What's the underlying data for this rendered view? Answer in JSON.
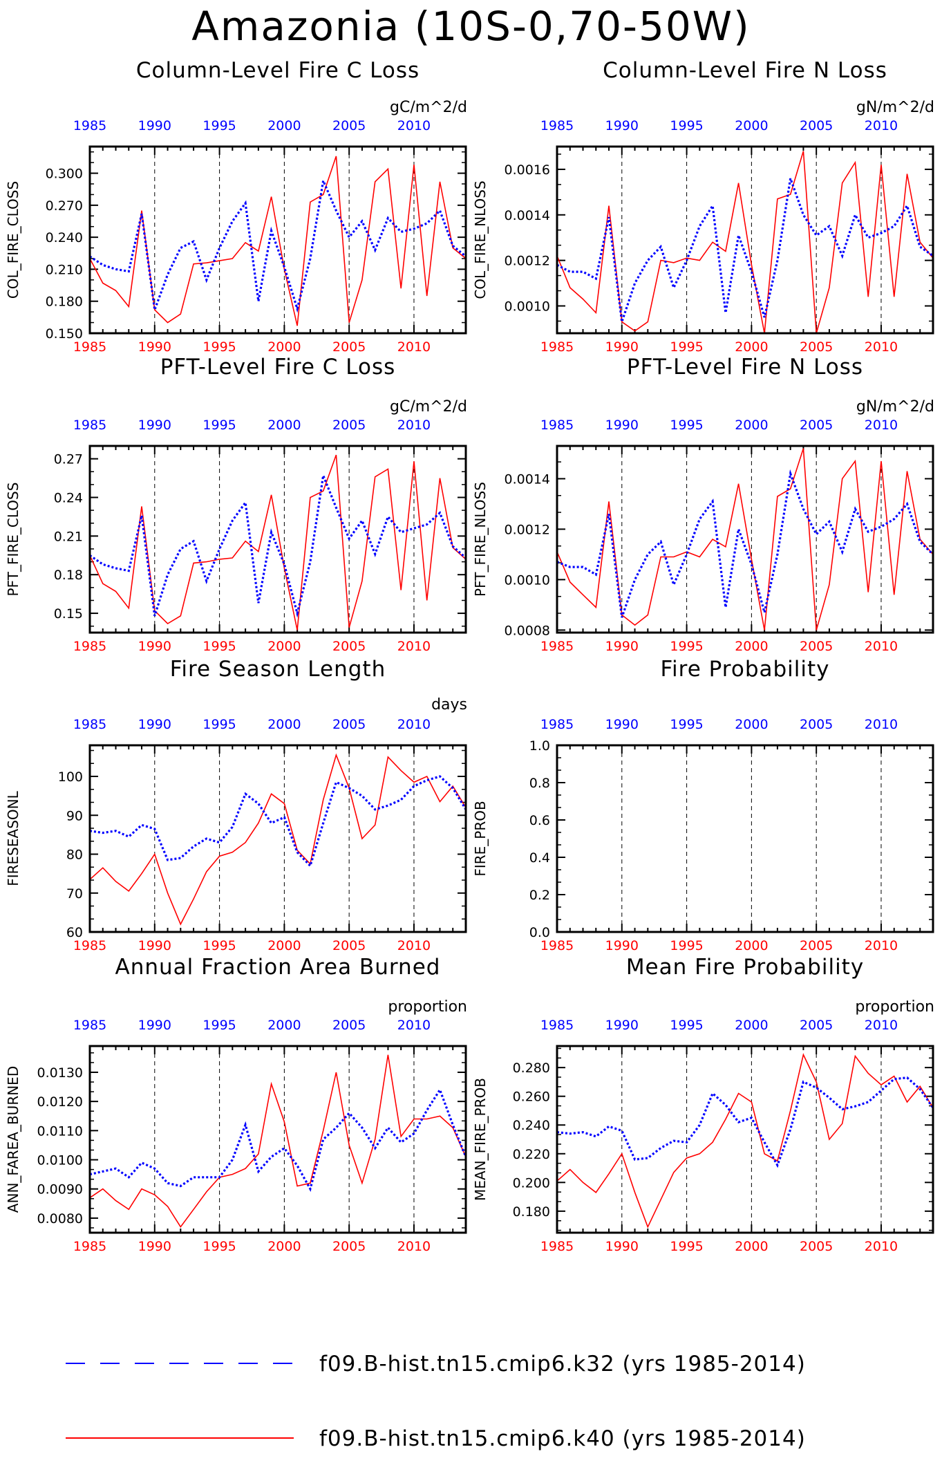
{
  "title": "Amazonia (10S-0,70-50W)",
  "x_ticks": [
    "1985",
    "1990",
    "1995",
    "2000",
    "2005",
    "2010"
  ],
  "legend": [
    {
      "label": "f09.B-hist.tn15.cmip6.k32 (yrs 1985-2014)",
      "color": "#0000ff",
      "style": "dashed"
    },
    {
      "label": "f09.B-hist.tn15.cmip6.k40 (yrs 1985-2014)",
      "color": "#ff0000",
      "style": "solid"
    }
  ],
  "chart_data": [
    {
      "type": "line",
      "title": "Column-Level Fire C Loss",
      "units": "gC/m^2/d",
      "ylabel": "COL_FIRE_CLOSS",
      "xlim": [
        1985,
        2014
      ],
      "ylim": [
        0.15,
        0.325
      ],
      "yticks": [
        "0.150",
        "0.180",
        "0.210",
        "0.240",
        "0.270",
        "0.300"
      ],
      "x": [
        1985,
        1986,
        1987,
        1988,
        1989,
        1990,
        1991,
        1992,
        1993,
        1994,
        1995,
        1996,
        1997,
        1998,
        1999,
        2000,
        2001,
        2002,
        2003,
        2004,
        2005,
        2006,
        2007,
        2008,
        2009,
        2010,
        2011,
        2012,
        2013,
        2014
      ],
      "series": [
        {
          "name": "f09.B-hist.tn15.cmip6.k32",
          "values": [
            0.222,
            0.214,
            0.21,
            0.208,
            0.262,
            0.172,
            0.205,
            0.23,
            0.236,
            0.2,
            0.23,
            0.255,
            0.272,
            0.18,
            0.246,
            0.212,
            0.173,
            0.22,
            0.293,
            0.265,
            0.24,
            0.255,
            0.228,
            0.258,
            0.245,
            0.248,
            0.253,
            0.265,
            0.232,
            0.222
          ]
        },
        {
          "name": "f09.B-hist.tn15.cmip6.k40",
          "values": [
            0.22,
            0.197,
            0.19,
            0.175,
            0.265,
            0.172,
            0.16,
            0.168,
            0.215,
            0.216,
            0.218,
            0.22,
            0.235,
            0.227,
            0.278,
            0.21,
            0.157,
            0.273,
            0.28,
            0.316,
            0.16,
            0.2,
            0.292,
            0.304,
            0.192,
            0.308,
            0.185,
            0.292,
            0.23,
            0.22
          ]
        }
      ]
    },
    {
      "type": "line",
      "title": "Column-Level Fire N Loss",
      "units": "gN/m^2/d",
      "ylabel": "COL_FIRE_NLOSS",
      "xlim": [
        1985,
        2014
      ],
      "ylim": [
        0.00088,
        0.0017
      ],
      "yticks": [
        "0.0010",
        "0.0012",
        "0.0014",
        "0.0016"
      ],
      "x": [
        1985,
        1986,
        1987,
        1988,
        1989,
        1990,
        1991,
        1992,
        1993,
        1994,
        1995,
        1996,
        1997,
        1998,
        1999,
        2000,
        2001,
        2002,
        2003,
        2004,
        2005,
        2006,
        2007,
        2008,
        2009,
        2010,
        2011,
        2012,
        2013,
        2014
      ],
      "series": [
        {
          "name": "f09.B-hist.tn15.cmip6.k32",
          "values": [
            0.00118,
            0.00115,
            0.00115,
            0.00112,
            0.00139,
            0.00093,
            0.0011,
            0.0012,
            0.00126,
            0.00108,
            0.0012,
            0.00135,
            0.00144,
            0.00097,
            0.00131,
            0.00115,
            0.00095,
            0.0012,
            0.00156,
            0.0014,
            0.00131,
            0.00135,
            0.00122,
            0.0014,
            0.0013,
            0.00132,
            0.00135,
            0.00144,
            0.00126,
            0.00122
          ]
        },
        {
          "name": "f09.B-hist.tn15.cmip6.k40",
          "values": [
            0.00122,
            0.00108,
            0.00103,
            0.00097,
            0.00144,
            0.00093,
            0.00089,
            0.00093,
            0.0012,
            0.00119,
            0.00121,
            0.0012,
            0.00128,
            0.00124,
            0.00154,
            0.00118,
            0.00088,
            0.00147,
            0.00149,
            0.00168,
            0.00088,
            0.00108,
            0.00154,
            0.00163,
            0.00104,
            0.00162,
            0.00104,
            0.00158,
            0.00128,
            0.00121
          ]
        }
      ]
    },
    {
      "type": "line",
      "title": "PFT-Level Fire C Loss",
      "units": "gC/m^2/d",
      "ylabel": "PFT_FIRE_CLOSS",
      "xlim": [
        1985,
        2014
      ],
      "ylim": [
        0.135,
        0.28
      ],
      "yticks": [
        "0.15",
        "0.18",
        "0.21",
        "0.24",
        "0.27"
      ],
      "x": [
        1985,
        1986,
        1987,
        1988,
        1989,
        1990,
        1991,
        1992,
        1993,
        1994,
        1995,
        1996,
        1997,
        1998,
        1999,
        2000,
        2001,
        2002,
        2003,
        2004,
        2005,
        2006,
        2007,
        2008,
        2009,
        2010,
        2011,
        2012,
        2013,
        2014
      ],
      "series": [
        {
          "name": "f09.B-hist.tn15.cmip6.k32",
          "values": [
            0.195,
            0.188,
            0.185,
            0.183,
            0.226,
            0.148,
            0.18,
            0.2,
            0.206,
            0.175,
            0.2,
            0.222,
            0.236,
            0.158,
            0.213,
            0.188,
            0.15,
            0.19,
            0.257,
            0.232,
            0.208,
            0.222,
            0.196,
            0.225,
            0.213,
            0.216,
            0.219,
            0.228,
            0.202,
            0.193
          ]
        },
        {
          "name": "f09.B-hist.tn15.cmip6.k40",
          "values": [
            0.195,
            0.173,
            0.167,
            0.154,
            0.233,
            0.152,
            0.142,
            0.148,
            0.189,
            0.19,
            0.192,
            0.193,
            0.206,
            0.198,
            0.242,
            0.185,
            0.137,
            0.24,
            0.245,
            0.273,
            0.139,
            0.175,
            0.256,
            0.262,
            0.168,
            0.268,
            0.16,
            0.255,
            0.201,
            0.192
          ]
        }
      ]
    },
    {
      "type": "line",
      "title": "PFT-Level Fire N Loss",
      "units": "gN/m^2/d",
      "ylabel": "PFT_FIRE_NLOSS",
      "xlim": [
        1985,
        2014
      ],
      "ylim": [
        0.00079,
        0.00153
      ],
      "yticks": [
        "0.0008",
        "0.0010",
        "0.0012",
        "0.0014"
      ],
      "x": [
        1985,
        1986,
        1987,
        1988,
        1989,
        1990,
        1991,
        1992,
        1993,
        1994,
        1995,
        1996,
        1997,
        1998,
        1999,
        2000,
        2001,
        2002,
        2003,
        2004,
        2005,
        2006,
        2007,
        2008,
        2009,
        2010,
        2011,
        2012,
        2013,
        2014
      ],
      "series": [
        {
          "name": "f09.B-hist.tn15.cmip6.k32",
          "values": [
            0.00107,
            0.00105,
            0.00105,
            0.00102,
            0.00126,
            0.00085,
            0.001,
            0.0011,
            0.00115,
            0.00098,
            0.0011,
            0.00124,
            0.00131,
            0.00089,
            0.0012,
            0.00106,
            0.00087,
            0.0011,
            0.00142,
            0.00128,
            0.00118,
            0.00123,
            0.00111,
            0.00128,
            0.00119,
            0.00121,
            0.00124,
            0.0013,
            0.00115,
            0.0011
          ]
        },
        {
          "name": "f09.B-hist.tn15.cmip6.k40",
          "values": [
            0.00111,
            0.00099,
            0.00094,
            0.00089,
            0.00131,
            0.00086,
            0.00082,
            0.00086,
            0.00109,
            0.00109,
            0.00111,
            0.00109,
            0.00116,
            0.00113,
            0.00138,
            0.00108,
            0.0008,
            0.00133,
            0.00136,
            0.00152,
            0.0008,
            0.00098,
            0.0014,
            0.00147,
            0.00095,
            0.00147,
            0.00094,
            0.00143,
            0.00116,
            0.0011
          ]
        }
      ]
    },
    {
      "type": "line",
      "title": "Fire Season Length",
      "units": "days",
      "ylabel": "FIRESEASONL",
      "xlim": [
        1985,
        2014
      ],
      "ylim": [
        60,
        108
      ],
      "yticks": [
        "60",
        "70",
        "80",
        "90",
        "100"
      ],
      "x": [
        1985,
        1986,
        1987,
        1988,
        1989,
        1990,
        1991,
        1992,
        1993,
        1994,
        1995,
        1996,
        1997,
        1998,
        1999,
        2000,
        2001,
        2002,
        2003,
        2004,
        2005,
        2006,
        2007,
        2008,
        2009,
        2010,
        2011,
        2012,
        2013,
        2014
      ],
      "series": [
        {
          "name": "f09.B-hist.tn15.cmip6.k32",
          "values": [
            86,
            85.5,
            86,
            84.5,
            87.5,
            86.5,
            78.5,
            79,
            82,
            84,
            83,
            87,
            95.5,
            93,
            88,
            89.5,
            80.5,
            77,
            88,
            98.5,
            97,
            95,
            91.5,
            92.5,
            94,
            97.5,
            99,
            100,
            97,
            91.5
          ]
        },
        {
          "name": "f09.B-hist.tn15.cmip6.k40",
          "values": [
            73.5,
            76.5,
            73,
            70.5,
            75,
            80,
            70,
            62,
            68.5,
            75.5,
            79.5,
            80.5,
            83,
            88,
            95.5,
            93,
            81,
            77.5,
            94,
            105.5,
            97,
            84,
            87.5,
            105,
            101.5,
            98.5,
            100,
            93.5,
            97.5,
            92
          ]
        }
      ]
    },
    {
      "type": "line",
      "title": "Fire Probability",
      "units": "",
      "ylabel": "FIRE_PROB",
      "xlim": [
        1985,
        2014
      ],
      "ylim": [
        0,
        1
      ],
      "yticks": [
        "0.0",
        "0.2",
        "0.4",
        "0.6",
        "0.8",
        "1.0"
      ],
      "x": [],
      "series": []
    },
    {
      "type": "line",
      "title": "Annual Fraction Area Burned",
      "units": "proportion",
      "ylabel": "ANN_FAREA_BURNED",
      "xlim": [
        1985,
        2014
      ],
      "ylim": [
        0.0075,
        0.0139
      ],
      "yticks": [
        "0.0080",
        "0.0090",
        "0.0100",
        "0.0110",
        "0.0120",
        "0.0130"
      ],
      "x": [
        1985,
        1986,
        1987,
        1988,
        1989,
        1990,
        1991,
        1992,
        1993,
        1994,
        1995,
        1996,
        1997,
        1998,
        1999,
        2000,
        2001,
        2002,
        2003,
        2004,
        2005,
        2006,
        2007,
        2008,
        2009,
        2010,
        2011,
        2012,
        2013,
        2014
      ],
      "series": [
        {
          "name": "f09.B-hist.tn15.cmip6.k32",
          "values": [
            0.0095,
            0.0096,
            0.0097,
            0.0094,
            0.0099,
            0.0097,
            0.0092,
            0.0091,
            0.0094,
            0.0094,
            0.0094,
            0.01,
            0.0112,
            0.0096,
            0.0101,
            0.0104,
            0.0098,
            0.009,
            0.0107,
            0.0111,
            0.0116,
            0.0111,
            0.0104,
            0.0111,
            0.0106,
            0.0109,
            0.0117,
            0.0124,
            0.0112,
            0.0101
          ]
        },
        {
          "name": "f09.B-hist.tn15.cmip6.k40",
          "values": [
            0.0087,
            0.009,
            0.0086,
            0.0083,
            0.009,
            0.0088,
            0.0084,
            0.0077,
            0.0083,
            0.0089,
            0.0094,
            0.0095,
            0.0097,
            0.0102,
            0.0126,
            0.0113,
            0.0091,
            0.0092,
            0.011,
            0.013,
            0.0105,
            0.0092,
            0.0107,
            0.0136,
            0.0108,
            0.0114,
            0.0114,
            0.0115,
            0.0111,
            0.0101
          ]
        }
      ]
    },
    {
      "type": "line",
      "title": "Mean Fire Probability",
      "units": "proportion",
      "ylabel": "MEAN_FIRE_PROB",
      "xlim": [
        1985,
        2014
      ],
      "ylim": [
        0.165,
        0.295
      ],
      "yticks": [
        "0.180",
        "0.200",
        "0.220",
        "0.240",
        "0.260",
        "0.280"
      ],
      "x": [
        1985,
        1986,
        1987,
        1988,
        1989,
        1990,
        1991,
        1992,
        1993,
        1994,
        1995,
        1996,
        1997,
        1998,
        1999,
        2000,
        2001,
        2002,
        2003,
        2004,
        2005,
        2006,
        2007,
        2008,
        2009,
        2010,
        2011,
        2012,
        2013,
        2014
      ],
      "series": [
        {
          "name": "f09.B-hist.tn15.cmip6.k32",
          "values": [
            0.235,
            0.234,
            0.235,
            0.232,
            0.239,
            0.236,
            0.216,
            0.217,
            0.224,
            0.229,
            0.228,
            0.24,
            0.262,
            0.254,
            0.242,
            0.245,
            0.228,
            0.212,
            0.237,
            0.27,
            0.266,
            0.259,
            0.251,
            0.253,
            0.256,
            0.264,
            0.272,
            0.273,
            0.265,
            0.252
          ]
        },
        {
          "name": "f09.B-hist.tn15.cmip6.k40",
          "values": [
            0.201,
            0.209,
            0.2,
            0.193,
            0.206,
            0.22,
            0.193,
            0.169,
            0.188,
            0.207,
            0.217,
            0.22,
            0.228,
            0.244,
            0.262,
            0.256,
            0.22,
            0.215,
            0.25,
            0.289,
            0.27,
            0.23,
            0.241,
            0.288,
            0.276,
            0.268,
            0.274,
            0.256,
            0.267,
            0.252
          ]
        }
      ]
    }
  ]
}
